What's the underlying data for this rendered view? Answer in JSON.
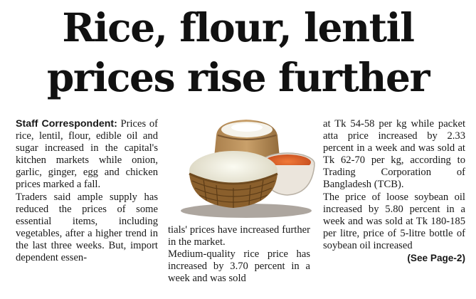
{
  "headline": {
    "line1": "Rice, flour, lentil",
    "line2": "prices rise further"
  },
  "article": {
    "byline": "Staff Correspondent:",
    "col1": {
      "p1_rest": " Prices of rice, lentil, flour, edible oil and sugar increased in the capital's kitchen markets while onion, garlic, ginger, egg and chicken prices marked a fall.",
      "p2": "Traders said ample supply has reduced the prices of some essential items, including vegetables, after a higher trend in the last three weeks. But, import dependent essen-"
    },
    "col2": {
      "p1": "tials' prices have increased further in the market.",
      "p2": "Medium-quality rice price has increased by 3.70 percent in a week and was sold"
    },
    "col3": {
      "p1": "at Tk 54-58 per kg while packet atta price increased by 2.33 percent in a week and was sold at Tk 62-70 per kg, according to Trading Corporation of Bangladesh (TCB).",
      "p2": "The price of loose soybean oil increased by 5.80 percent in a week and was sold at Tk 180-185 per litre, price of 5-litre bottle of soybean oil increased",
      "see_page": "(See Page-2)"
    }
  }
}
